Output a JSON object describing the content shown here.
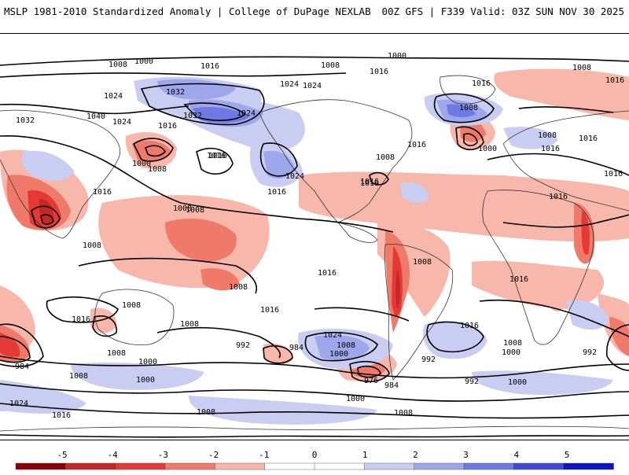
{
  "header": {
    "title_left": "MSLP 1981-2010 Standardized Anomaly | College of DuPage NEXLAB",
    "title_right": "00Z GFS | F339 Valid: 03Z SUN NOV 30 2025"
  },
  "colors": {
    "neg5": "#8b0000",
    "neg4": "#c62828",
    "neg3": "#e53935",
    "neg2": "#f07a6a",
    "neg1": "#f8b7ab",
    "zero": "#ffffff",
    "pos1": "#c9cdf2",
    "pos2": "#9ea6ec",
    "pos3": "#6f79e3",
    "pos4": "#3f4bd6",
    "pos5": "#0a14c8"
  },
  "isobar_labels": [
    "1000",
    "1008",
    "1016",
    "1008",
    "1000",
    "1008",
    "1016",
    "1016",
    "1024",
    "1032",
    "1016",
    "1032",
    "1024",
    "1040",
    "1016",
    "1032",
    "1024",
    "1016",
    "1000",
    "1008",
    "1016",
    "1024",
    "1024",
    "1016",
    "1016",
    "1008",
    "1016",
    "1008",
    "1000",
    "1008",
    "1016",
    "1008",
    "1016",
    "1016",
    "1024",
    "1016",
    "1008",
    "1008",
    "1016",
    "1016",
    "1016",
    "1016",
    "1008",
    "1008",
    "1016",
    "1008",
    "1008",
    "1016",
    "1016",
    "1024",
    "1008",
    "1000",
    "992",
    "984",
    "1000",
    "976",
    "984",
    "992",
    "992",
    "1000",
    "1008",
    "1000",
    "1008",
    "992",
    "984",
    "1008",
    "1000",
    "1024",
    "1016",
    "1008",
    "1000",
    "1008"
  ],
  "colorbar": {
    "ticks": [
      "-5",
      "-4",
      "-3",
      "-2",
      "-1",
      "0",
      "1",
      "2",
      "3",
      "4",
      "5"
    ]
  }
}
